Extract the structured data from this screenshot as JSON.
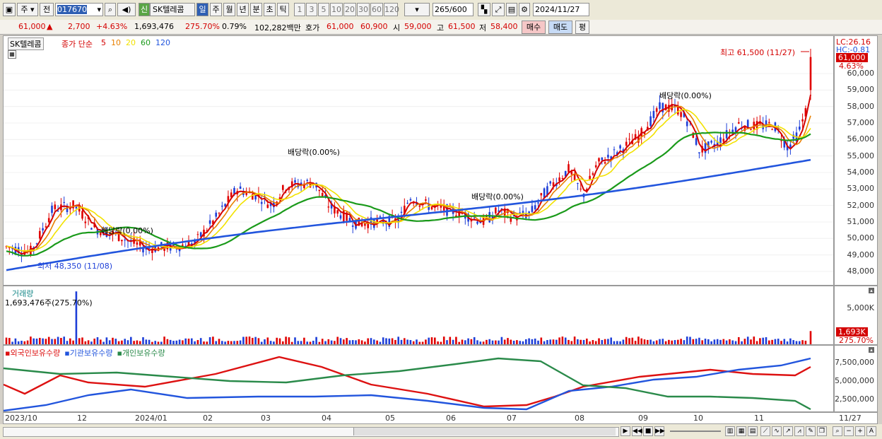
{
  "toolbar": {
    "period_type": "주",
    "prev_label": "전",
    "code": "017670",
    "stock_name": "SK텔레콤",
    "credit_badge": "신",
    "periods": [
      "일",
      "주",
      "월",
      "년",
      "분",
      "초",
      "틱"
    ],
    "intervals": [
      "1",
      "3",
      "5",
      "10",
      "20",
      "30",
      "60",
      "120"
    ],
    "count": "265",
    "count_total": "/600",
    "date": "2024/11/27"
  },
  "quote": {
    "price": "61,000",
    "change": "2,700",
    "change_pct": "+4.63%",
    "volume": "1,693,476",
    "volume_ratio": "275.70%",
    "turnover": "0.79%",
    "amount": "102,282백만",
    "hoga_label": "호가",
    "ask": "61,000",
    "bid": "60,900",
    "open_label": "시",
    "open": "59,000",
    "high_label": "고",
    "high": "61,500",
    "low_label": "저",
    "low": "58,400",
    "buy_label": "매수",
    "sell_label": "매도",
    "eval_label": "평"
  },
  "price_panel": {
    "stock_tag": "SK텔레콤",
    "legend_prefix": "종가 단순",
    "ma_periods": [
      "5",
      "10",
      "20",
      "60",
      "120"
    ],
    "ma_colors": [
      "#d40000",
      "#e88000",
      "#f2e200",
      "#1a9a1a",
      "#2255dd"
    ],
    "lc_label": "LC:26.16",
    "hc_label": "HC:-0.81",
    "current_price": "61,000",
    "current_pct": "4.63%",
    "y_ticks": [
      "60,000",
      "59,000",
      "58,000",
      "57,000",
      "56,000",
      "55,000",
      "54,000",
      "53,000",
      "52,000",
      "51,000",
      "50,000",
      "49,000",
      "48,000"
    ],
    "annotations": {
      "high": "최고 61,500 (11/27)",
      "low": "최저 48,350 (11/08)",
      "div1": "배당락(0.00%)",
      "div2": "배당락(0.00%)",
      "div3": "배당락(0.00%)",
      "div4": "배당락(0.00%)"
    }
  },
  "volume_panel": {
    "title": "거래량",
    "value": "1,693,476주(275.70%)",
    "y_tick": "5,000K",
    "current": "1,693K",
    "current_pct": "275.70%"
  },
  "holdings_panel": {
    "legend": [
      "외국인보유수량",
      "기관보유수량",
      "개인보유수량"
    ],
    "colors": [
      "#dd1111",
      "#2255dd",
      "#2a8a4a"
    ],
    "y_ticks": [
      "7,500,000",
      "5,000,000",
      "2,500,000"
    ]
  },
  "x_axis": {
    "labels": [
      "2023/10",
      "12",
      "2024/01",
      "02",
      "03",
      "04",
      "05",
      "06",
      "07",
      "08",
      "09",
      "10",
      "11",
      "11/27"
    ]
  }
}
